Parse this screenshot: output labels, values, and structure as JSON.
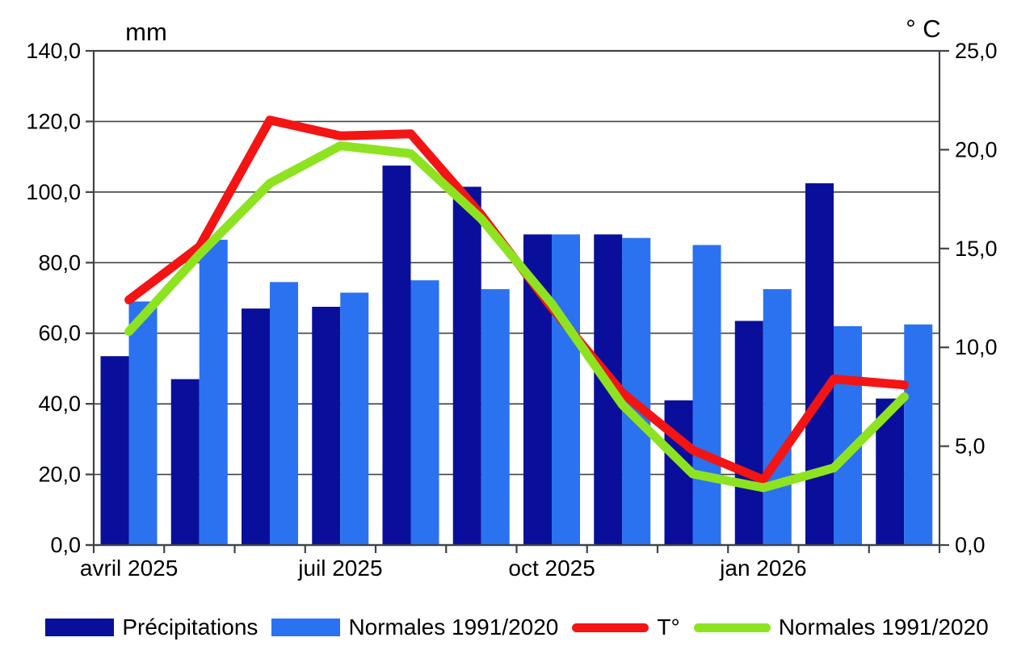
{
  "chart_data": {
    "type": "combo-bar-line",
    "categories": [
      "avril 2025",
      "mai 2025",
      "juin 2025",
      "juil 2025",
      "août 2025",
      "sept 2025",
      "oct 2025",
      "nov 2025",
      "déc 2025",
      "jan 2026",
      "fév 2026",
      "mars 2026"
    ],
    "x_tick_labels_shown": [
      {
        "index": 0,
        "label": "avril 2025"
      },
      {
        "index": 3,
        "label": "juil 2025"
      },
      {
        "index": 6,
        "label": "oct 2025"
      },
      {
        "index": 9,
        "label": "jan 2026"
      }
    ],
    "series": [
      {
        "name": "Précipitations",
        "type": "bar",
        "axis": "left",
        "color": "#0a0f9b",
        "values": [
          53.5,
          47.0,
          67.0,
          67.5,
          107.5,
          101.5,
          88.0,
          88.0,
          41.0,
          63.5,
          102.5,
          41.5
        ]
      },
      {
        "name": "Normales 1991/2020",
        "type": "bar",
        "axis": "left",
        "color": "#2b72f0",
        "values": [
          69.0,
          86.5,
          74.5,
          71.5,
          75.0,
          72.5,
          88.0,
          87.0,
          85.0,
          72.5,
          62.0,
          62.5
        ]
      },
      {
        "name": "T°",
        "type": "line",
        "axis": "right",
        "color": "#f31414",
        "values": [
          12.4,
          15.1,
          21.5,
          20.7,
          20.8,
          16.7,
          12.0,
          7.7,
          4.8,
          3.3,
          8.4,
          8.1
        ]
      },
      {
        "name": "Normales 1991/2020",
        "type": "line",
        "axis": "right",
        "color": "#8ee320",
        "values": [
          10.8,
          14.7,
          18.3,
          20.2,
          19.8,
          16.5,
          12.2,
          7.1,
          3.6,
          2.9,
          3.9,
          7.5
        ]
      }
    ],
    "left_axis": {
      "title": "mm",
      "min": 0,
      "max": 140,
      "step": 20,
      "tick_labels": [
        "0,0",
        "20,0",
        "40,0",
        "60,0",
        "80,0",
        "100,0",
        "120,0",
        "140,0"
      ]
    },
    "right_axis": {
      "title": "° C",
      "min": 0,
      "max": 25,
      "step": 5,
      "tick_labels": [
        "0,0",
        "5,0",
        "10,0",
        "15,0",
        "20,0",
        "25,0"
      ]
    },
    "grid": "horizontal",
    "legend_position": "bottom",
    "colors": {
      "grid": "#3f4347",
      "axis": "#3f4347",
      "text": "#000000"
    }
  }
}
